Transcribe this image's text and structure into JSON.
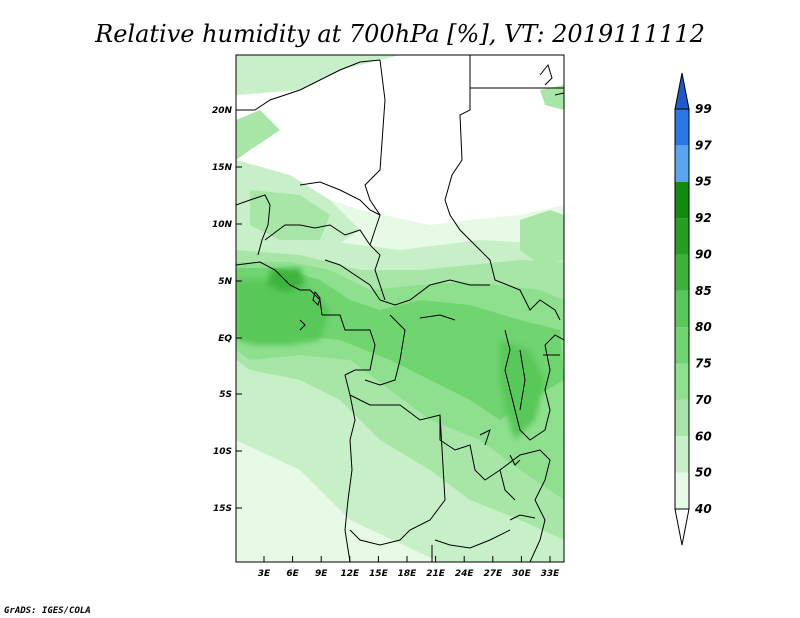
{
  "title": "Relative humidity at 700hPa [%], VT: 2019111112",
  "credit": "GrADS: IGES/COLA",
  "map": {
    "lat_labels": [
      "20N",
      "15N",
      "10N",
      "5N",
      "EQ",
      "5S",
      "10S",
      "15S"
    ],
    "lon_labels": [
      "3E",
      "6E",
      "9E",
      "12E",
      "15E",
      "18E",
      "21E",
      "24E",
      "27E",
      "30E",
      "33E"
    ]
  },
  "colorbar": {
    "levels": [
      "40",
      "50",
      "60",
      "70",
      "75",
      "80",
      "85",
      "90",
      "92",
      "95",
      "97",
      "99"
    ],
    "colors": [
      "#ffffff",
      "#e6fae6",
      "#c8f0c8",
      "#a7e6a7",
      "#8ee08e",
      "#70d470",
      "#58c858",
      "#3cb43c",
      "#249f24",
      "#0f8c0f",
      "#5aa5f0",
      "#2878e6",
      "#1e5ac8"
    ]
  },
  "legend_palette": {
    "land_border": "#000000",
    "background": "#ffffff"
  }
}
